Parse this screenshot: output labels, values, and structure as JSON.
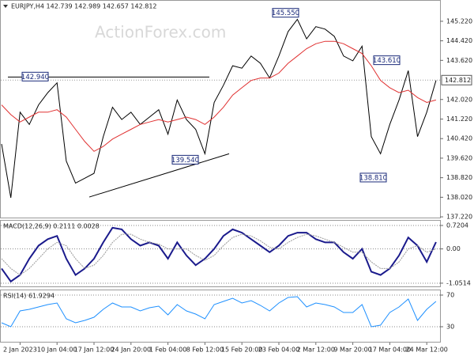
{
  "chart_data": [
    {
      "type": "line",
      "title": "EURJPY,H4 142.739 142.989 142.657 142.812",
      "watermark": "ActionForex.com",
      "categories": [
        null,
        null,
        "2 Jan 2023",
        null,
        null,
        null,
        "10 Jan 04:00",
        null,
        null,
        null,
        "17 Jan 12:00",
        null,
        null,
        null,
        "24 Jan 20:00",
        null,
        null,
        null,
        "1 Feb 04:00",
        null,
        null,
        null,
        "8 Feb 12:00",
        null,
        null,
        null,
        "15 Feb 20:00",
        null,
        null,
        null,
        "23 Feb 04:00",
        null,
        null,
        null,
        "2 Mar 12:00",
        null,
        null,
        null,
        "9 Mar 20:00",
        null,
        null,
        null,
        "17 Mar 04:00",
        null,
        null,
        null,
        "24 Mar 12:00",
        null
      ],
      "series": [
        {
          "color": "#000000",
          "values": [
            140.2,
            138.0,
            141.5,
            141.0,
            141.8,
            142.3,
            142.7,
            139.5,
            138.6,
            138.8,
            139.0,
            140.5,
            141.7,
            141.2,
            141.5,
            141.0,
            141.3,
            141.6,
            140.6,
            142.0,
            141.2,
            140.8,
            139.8,
            141.9,
            142.6,
            143.4,
            143.3,
            143.8,
            143.5,
            142.9,
            143.8,
            144.8,
            145.3,
            144.5,
            145.0,
            144.9,
            144.6,
            143.8,
            143.6,
            144.2,
            140.5,
            139.8,
            141.0,
            142.0,
            143.2,
            140.5,
            141.5,
            142.8
          ]
        },
        {
          "color": "#e03030",
          "values": [
            141.8,
            141.4,
            141.1,
            141.3,
            141.5,
            141.5,
            141.6,
            141.3,
            140.8,
            140.3,
            139.9,
            140.1,
            140.4,
            140.6,
            140.8,
            141.0,
            141.1,
            141.2,
            141.1,
            141.2,
            141.3,
            141.2,
            141.0,
            141.3,
            141.7,
            142.2,
            142.5,
            142.8,
            142.9,
            142.9,
            143.1,
            143.5,
            143.8,
            144.1,
            144.3,
            144.4,
            144.4,
            144.3,
            144.1,
            143.9,
            143.4,
            142.8,
            142.5,
            142.3,
            142.4,
            142.1,
            141.9,
            142.0
          ]
        }
      ],
      "ylim": [
        137.19,
        146.09
      ],
      "yticks": [
        {
          "value": 145.22,
          "label": "145.220"
        },
        {
          "value": 144.42,
          "label": "144.420"
        },
        {
          "value": 143.62,
          "label": "143.620"
        },
        {
          "value": 142.02,
          "label": "142.020"
        },
        {
          "value": 141.22,
          "label": "141.220"
        },
        {
          "value": 140.42,
          "label": "140.420"
        },
        {
          "value": 139.62,
          "label": "139.620"
        },
        {
          "value": 138.82,
          "label": "138.820"
        },
        {
          "value": 138.02,
          "label": "138.020"
        },
        {
          "value": 137.22,
          "label": "137.220"
        }
      ],
      "grid": false,
      "last_price": {
        "value": 142.812,
        "label": "142.812"
      },
      "annotations": [
        {
          "value": 142.94,
          "label": "142.940"
        },
        {
          "value": 145.55,
          "label": "145.550"
        },
        {
          "value": 143.61,
          "label": "143.610"
        },
        {
          "value": 139.54,
          "label": "139.540"
        },
        {
          "value": 138.81,
          "label": "138.810"
        }
      ],
      "trendline": [
        138.03,
        139.8
      ]
    },
    {
      "type": "line",
      "title": "MACD(12,26,9) 0.2111 0.0028",
      "series": [
        {
          "color": "#1a1a8c",
          "values": [
            -0.6,
            -1.0,
            -0.8,
            -0.3,
            0.1,
            0.3,
            0.4,
            -0.3,
            -0.8,
            -0.6,
            -0.3,
            0.2,
            0.65,
            0.6,
            0.3,
            0.1,
            0.2,
            0.1,
            -0.3,
            0.2,
            -0.2,
            -0.5,
            -0.3,
            0.0,
            0.4,
            0.6,
            0.5,
            0.3,
            0.1,
            -0.1,
            0.1,
            0.4,
            0.5,
            0.5,
            0.3,
            0.2,
            0.2,
            -0.1,
            -0.3,
            0.0,
            -0.7,
            -0.8,
            -0.6,
            -0.2,
            0.35,
            0.1,
            -0.4,
            0.21
          ]
        },
        {
          "color": "#9a9a9a",
          "values": [
            -0.3,
            -0.6,
            -0.8,
            -0.6,
            -0.3,
            0.0,
            0.2,
            0.1,
            -0.3,
            -0.6,
            -0.5,
            -0.2,
            0.2,
            0.45,
            0.45,
            0.3,
            0.2,
            0.15,
            0.0,
            0.0,
            0.0,
            -0.2,
            -0.35,
            -0.2,
            0.1,
            0.35,
            0.45,
            0.4,
            0.25,
            0.05,
            0.0,
            0.2,
            0.35,
            0.45,
            0.4,
            0.3,
            0.2,
            0.05,
            -0.1,
            -0.1,
            -0.4,
            -0.6,
            -0.6,
            -0.4,
            0.0,
            0.1,
            -0.1,
            0.0
          ]
        }
      ],
      "ylim": [
        -1.15,
        0.89
      ],
      "yticks": [
        0.7204,
        {
          "value": 0,
          "label": "0.00"
        },
        -1.0514
      ],
      "grid": true
    },
    {
      "type": "line",
      "title": "RSI(14) 61.9294",
      "series": [
        {
          "color": "#1e90ff",
          "values": [
            35,
            30,
            50,
            52,
            55,
            58,
            60,
            40,
            35,
            38,
            42,
            52,
            60,
            55,
            55,
            50,
            54,
            56,
            45,
            58,
            50,
            46,
            40,
            58,
            62,
            66,
            60,
            63,
            57,
            50,
            60,
            67,
            68,
            55,
            60,
            58,
            55,
            48,
            48,
            58,
            30,
            32,
            48,
            55,
            65,
            38,
            52,
            62
          ]
        }
      ],
      "ylim": [
        11,
        77
      ],
      "yticks": [
        70,
        30
      ],
      "grid": true
    }
  ]
}
